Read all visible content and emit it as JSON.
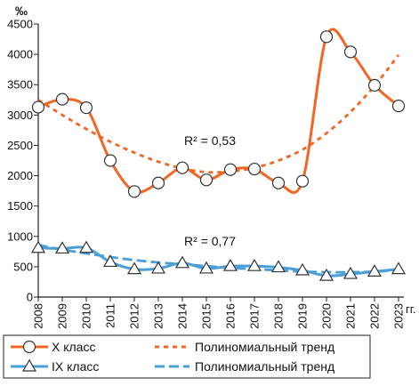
{
  "chart_data": {
    "type": "line",
    "y_unit": "‰",
    "x_unit": "гг.",
    "ylim": [
      0,
      4500
    ],
    "yticks": [
      0,
      500,
      1000,
      1500,
      2000,
      2500,
      3000,
      3500,
      4000,
      4500
    ],
    "categories": [
      "2008",
      "2009",
      "2010",
      "2011",
      "2012",
      "2013",
      "2014",
      "2015",
      "2016",
      "2017",
      "2018",
      "2019",
      "2020",
      "2021",
      "2022",
      "2023"
    ],
    "grid": false,
    "legend_position": "bottom",
    "series": [
      {
        "name": "X класс",
        "color": "#f26522",
        "marker": "circle",
        "values": [
          3130,
          3260,
          3120,
          2250,
          1740,
          1880,
          2130,
          1930,
          2100,
          2110,
          1880,
          1910,
          4290,
          4040,
          3490,
          3150
        ]
      },
      {
        "name": "IX класс",
        "color": "#4a9fd8",
        "marker": "triangle",
        "values": [
          810,
          800,
          810,
          580,
          460,
          470,
          560,
          470,
          510,
          510,
          490,
          440,
          350,
          380,
          420,
          460
        ]
      }
    ],
    "trends": [
      {
        "name": "Полиномиальный тренд",
        "color": "#f26522",
        "values": [
          3250,
          3000,
          2770,
          2560,
          2380,
          2230,
          2120,
          2060,
          2070,
          2130,
          2250,
          2430,
          2700,
          3050,
          3480,
          3990
        ],
        "r2_label": "R² = 0,53"
      },
      {
        "name": "Полиномиальный тренд",
        "color": "#4a9fd8",
        "values": [
          860,
          780,
          720,
          660,
          610,
          570,
          540,
          510,
          480,
          460,
          440,
          420,
          410,
          410,
          420,
          440
        ],
        "r2_label": "R² = 0,77"
      }
    ]
  }
}
